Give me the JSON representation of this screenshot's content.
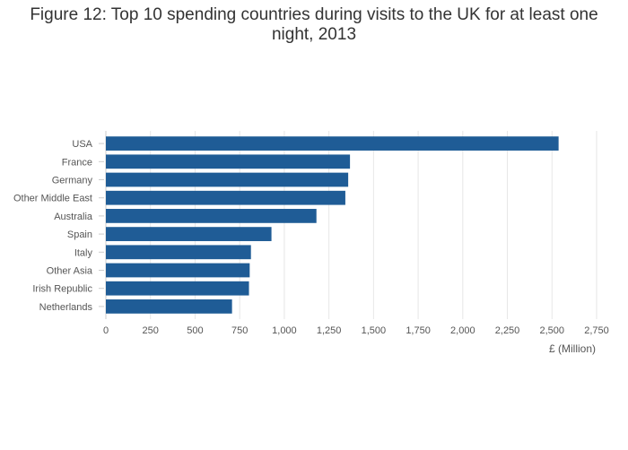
{
  "chart_data": {
    "type": "bar",
    "orientation": "horizontal",
    "title": "Figure 12: Top 10 spending countries during visits to the UK for at least one night, 2013",
    "xlabel": "£ (Million)",
    "ylabel": "",
    "categories": [
      "USA",
      "France",
      "Germany",
      "Other Middle East",
      "Australia",
      "Spain",
      "Italy",
      "Other Asia",
      "Irish Republic",
      "Netherlands"
    ],
    "values": [
      2537,
      1368,
      1358,
      1342,
      1180,
      928,
      813,
      806,
      802,
      707
    ],
    "xlim": [
      0,
      2750
    ],
    "xticks": [
      0,
      250,
      500,
      750,
      1000,
      1250,
      1500,
      1750,
      2000,
      2250,
      2500,
      2750
    ],
    "xtick_labels": [
      "0",
      "250",
      "500",
      "750",
      "1,000",
      "1,250",
      "1,500",
      "1,750",
      "2,000",
      "2,250",
      "2,500",
      "2,750"
    ],
    "grid": true,
    "legend": "none",
    "colors": {
      "bar": "#1f5c96",
      "grid": "#e6e6e6",
      "axis": "#cccccc"
    }
  }
}
